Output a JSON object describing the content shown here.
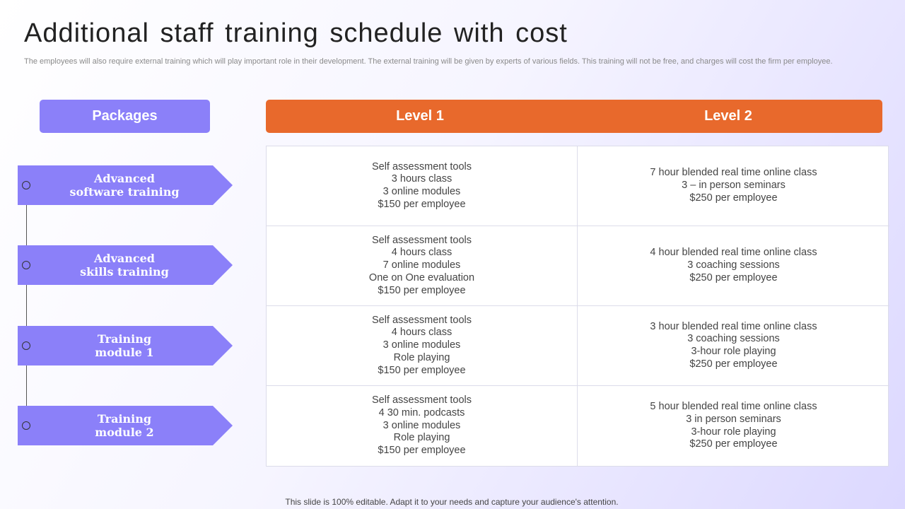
{
  "title": "Additional staff training schedule with cost",
  "subtitle": "The employees will also require external training which will play important role in their development. The external training will be given by experts of various fields. This training will not be free, and charges will cost the firm per employee.",
  "packages_header": "Packages",
  "levels": [
    "Level 1",
    "Level 2"
  ],
  "packages": [
    {
      "label": "Advanced\nsoftware training"
    },
    {
      "label": "Advanced\nskills  training"
    },
    {
      "label": "Training\nmodule  1"
    },
    {
      "label": "Training\nmodule  2"
    }
  ],
  "rows": [
    {
      "level1": [
        "Self assessment tools",
        "3 hours class",
        "3 online modules",
        "$150 per employee"
      ],
      "level2": [
        "7 hour blended real time online class",
        "3 – in person seminars",
        "$250 per employee"
      ]
    },
    {
      "level1": [
        "Self assessment tools",
        "4 hours class",
        "7 online modules",
        "One on One evaluation",
        "$150 per employee"
      ],
      "level2": [
        "4 hour blended real time online class",
        "3 coaching sessions",
        "$250 per employee"
      ]
    },
    {
      "level1": [
        "Self assessment tools",
        "4 hours class",
        "3 online modules",
        "Role playing",
        "$150 per employee"
      ],
      "level2": [
        "3 hour blended real time online class",
        "3 coaching sessions",
        "3-hour role playing",
        "$250 per employee"
      ]
    },
    {
      "level1": [
        "Self assessment tools",
        "4  30 min. podcasts",
        "3 online modules",
        "Role playing",
        "$150 per employee"
      ],
      "level2": [
        "5 hour blended real time online class",
        "3 in person seminars",
        "3-hour role playing",
        "$250 per employee"
      ]
    }
  ],
  "footer": "This slide is 100% editable. Adapt it to your needs and capture your audience's attention.",
  "colors": {
    "purple": "#8b80f9",
    "orange": "#e8692c"
  }
}
